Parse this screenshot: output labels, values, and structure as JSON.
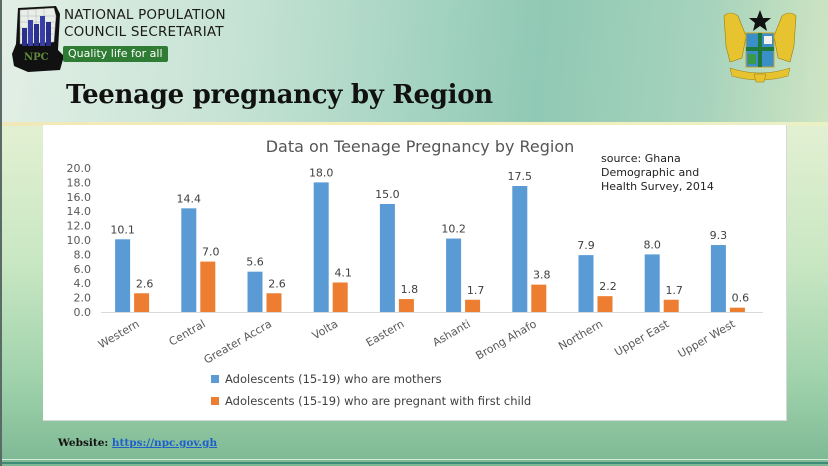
{
  "header": {
    "org_line1": "NATIONAL POPULATION",
    "org_line2": "COUNCIL SECRETARIAT",
    "tagline": "Quality life for all",
    "logo_icon": "npc-logo-icon",
    "crest_icon": "ghana-coat-of-arms-icon"
  },
  "page_title": "Teenage pregnancy by Region",
  "footer": {
    "label": "Website:",
    "link": "https://npc.gov.gh"
  },
  "colors": {
    "mothers": "#5b9bd5",
    "pregnant": "#ed7d31",
    "tagline_bg": "#2f7d35"
  },
  "chart_data": {
    "type": "bar",
    "title": "Data on Teenage Pregnancy by Region",
    "annotation": [
      "source: Ghana",
      "Demographic and",
      "Health Survey, 2014"
    ],
    "categories": [
      "Western",
      "Central",
      "Greater Accra",
      "Volta",
      "Eastern",
      "Ashanti",
      "Brong Ahafo",
      "Northern",
      "Upper East",
      "Upper West"
    ],
    "series": [
      {
        "name": "Adolescents (15-19) who are mothers",
        "values": [
          10.1,
          14.4,
          5.6,
          18.0,
          15.0,
          10.2,
          17.5,
          7.9,
          8.0,
          9.3
        ]
      },
      {
        "name": "Adolescents (15-19) who are pregnant with first child",
        "values": [
          2.6,
          7.0,
          2.6,
          4.1,
          1.8,
          1.7,
          3.8,
          2.2,
          1.7,
          0.6
        ]
      }
    ],
    "yticks": [
      "0.0",
      "2.0",
      "4.0",
      "6.0",
      "8.0",
      "10.0",
      "12.0",
      "14.0",
      "16.0",
      "18.0",
      "20.0"
    ],
    "ylim": [
      0,
      20
    ],
    "xlabel": "",
    "ylabel": "",
    "grid": false,
    "legend_position": "bottom",
    "data_labels": true
  }
}
